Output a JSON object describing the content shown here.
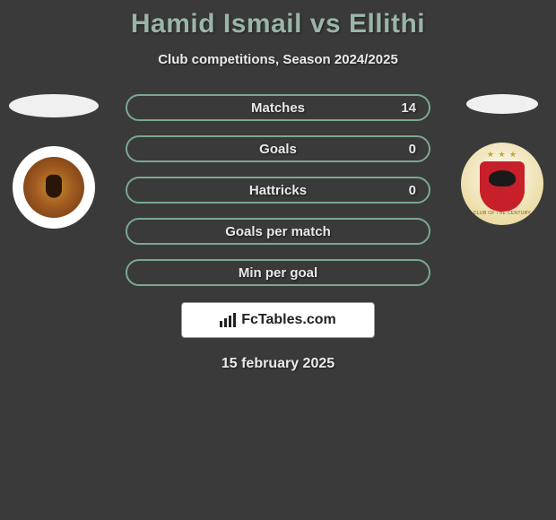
{
  "header": {
    "title": "Hamid Ismail vs Ellithi",
    "subtitle": "Club competitions, Season 2024/2025"
  },
  "styling": {
    "background_color": "#3a3a3a",
    "accent_color": "#7aa88f",
    "title_color": "#9bb5a8",
    "text_color": "#e8e8e8",
    "pill_border_radius": 16,
    "title_fontsize": 30,
    "subtitle_fontsize": 15,
    "stat_fontsize": 15,
    "date_fontsize": 16
  },
  "stats": [
    {
      "label": "Matches",
      "value": "14"
    },
    {
      "label": "Goals",
      "value": "0"
    },
    {
      "label": "Hattricks",
      "value": "0"
    },
    {
      "label": "Goals per match",
      "value": ""
    },
    {
      "label": "Min per goal",
      "value": ""
    }
  ],
  "brand": {
    "text": "FcTables.com"
  },
  "date": "15 february 2025",
  "teams": {
    "left": {
      "crest_name": "umm-salal-crest",
      "crest_bg": "#ffffff",
      "crest_colors": [
        "#c89030",
        "#a05a20",
        "#6a3612"
      ]
    },
    "right": {
      "crest_name": "al-ahly-crest",
      "shield_color": "#c8202a",
      "star_color": "#c9a227",
      "banner_text": "CLUB OF THE CENTURY"
    }
  }
}
